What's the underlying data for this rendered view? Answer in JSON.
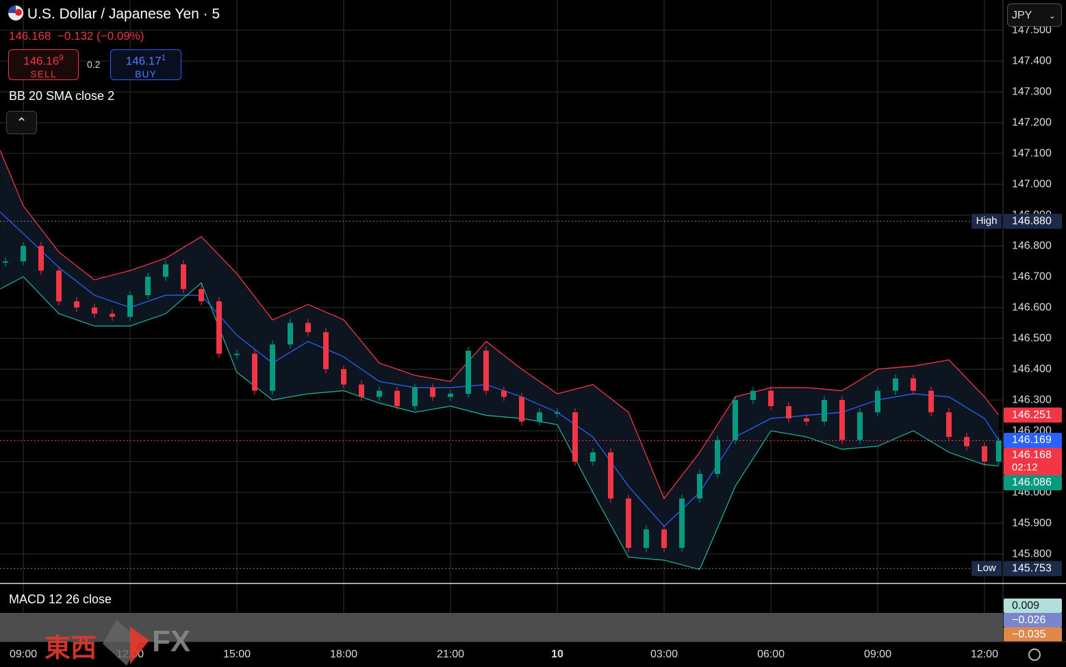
{
  "chart_data": {
    "type": "candlestick",
    "title": "U.S. Dollar / Japanese Yen · 5",
    "indicator": "BB 20 SMA close 2",
    "price": {
      "up_color": "#089981",
      "down_color": "#f23645",
      "x": [
        -0.5,
        0,
        0.5,
        1,
        1.5,
        2,
        2.5,
        3,
        3.5,
        4,
        4.5,
        5,
        5.5,
        6,
        6.5,
        7,
        7.5,
        8,
        8.5,
        9,
        9.5,
        10,
        10.5,
        11,
        11.5,
        12,
        12.5,
        13,
        13.5,
        14,
        14.5,
        15,
        15.5,
        16,
        16.5,
        17,
        17.5,
        18,
        18.5,
        19,
        19.5,
        20,
        20.5,
        21,
        21.5,
        22,
        22.5,
        23,
        23.5,
        24,
        24.5,
        25,
        25.5,
        26,
        26.5,
        27,
        27.4
      ],
      "values": [
        146.75,
        146.8,
        146.72,
        146.62,
        146.6,
        146.58,
        146.57,
        146.64,
        146.7,
        146.74,
        146.66,
        146.62,
        146.45,
        146.45,
        146.33,
        146.48,
        146.55,
        146.52,
        146.4,
        146.35,
        146.31,
        146.33,
        146.28,
        146.34,
        146.31,
        146.32,
        146.46,
        146.33,
        146.31,
        146.23,
        146.26,
        146.26,
        146.1,
        146.13,
        145.98,
        145.82,
        145.88,
        145.82,
        145.98,
        146.06,
        146.17,
        146.3,
        146.33,
        146.28,
        146.24,
        146.23,
        146.3,
        146.17,
        146.26,
        146.33,
        146.37,
        146.33,
        146.26,
        146.18,
        146.15,
        146.1,
        146.168
      ]
    },
    "series": [
      {
        "color": "#f23645",
        "x": [
          -0.65,
          0,
          1,
          2,
          3,
          4,
          5,
          6,
          7,
          8,
          9,
          10,
          11,
          12,
          13,
          14,
          15,
          16,
          17,
          18,
          19,
          20,
          21,
          22,
          23,
          24,
          25,
          26,
          27,
          27.4
        ],
        "values": [
          147.11,
          146.93,
          146.78,
          146.69,
          146.72,
          146.76,
          146.83,
          146.71,
          146.56,
          146.61,
          146.56,
          146.42,
          146.38,
          146.36,
          146.49,
          146.4,
          146.32,
          146.35,
          146.26,
          145.98,
          146.13,
          146.31,
          146.34,
          146.34,
          146.33,
          146.4,
          146.41,
          146.43,
          146.31,
          146.251
        ]
      },
      {
        "color": "#2962ff",
        "x": [
          -0.65,
          0,
          1,
          2,
          3,
          4,
          5,
          6,
          7,
          8,
          9,
          10,
          11,
          12,
          13,
          14,
          15,
          16,
          17,
          18,
          19,
          20,
          21,
          22,
          23,
          24,
          25,
          26,
          27,
          27.4
        ],
        "values": [
          146.91,
          146.84,
          146.73,
          146.64,
          146.6,
          146.64,
          146.64,
          146.51,
          146.42,
          146.49,
          146.44,
          146.36,
          146.34,
          146.34,
          146.35,
          146.31,
          146.26,
          146.18,
          146.02,
          145.89,
          146.0,
          146.18,
          146.24,
          146.25,
          146.26,
          146.3,
          146.32,
          146.31,
          146.24,
          146.169
        ]
      },
      {
        "color": "#22ab94",
        "x": [
          -0.65,
          0,
          1,
          2,
          3,
          4,
          5,
          6,
          7,
          8,
          9,
          10,
          11,
          12,
          13,
          14,
          15,
          16,
          17,
          18,
          19,
          20,
          21,
          22,
          23,
          24,
          25,
          26,
          27,
          27.4
        ],
        "values": [
          146.66,
          146.7,
          146.58,
          146.54,
          146.54,
          146.58,
          146.68,
          146.39,
          146.3,
          146.32,
          146.33,
          146.29,
          146.26,
          146.28,
          146.25,
          146.24,
          146.22,
          146.0,
          145.79,
          145.78,
          145.75,
          146.02,
          146.2,
          146.18,
          146.14,
          146.15,
          146.2,
          146.13,
          146.09,
          146.086
        ]
      }
    ],
    "band_fill": "#0c1520",
    "xlim": [
      -0.654,
      27.52
    ],
    "xticks": [
      {
        "value": 0,
        "label": "09:00"
      },
      {
        "value": 3,
        "label": "12:00"
      },
      {
        "value": 6,
        "label": "15:00"
      },
      {
        "value": 9,
        "label": "18:00"
      },
      {
        "value": 12,
        "label": "21:00"
      },
      {
        "value": 15,
        "label": "10"
      },
      {
        "value": 18,
        "label": "03:00"
      },
      {
        "value": 21,
        "label": "06:00"
      },
      {
        "value": 24,
        "label": "09:00"
      },
      {
        "value": 27,
        "label": "12:00"
      }
    ],
    "ylim": [
      145.709,
      147.598
    ],
    "yticks": [
      {
        "value": 145.8,
        "label": "145.800"
      },
      {
        "value": 145.9,
        "label": "145.900"
      },
      {
        "value": 146.0,
        "label": "146.000"
      },
      {
        "value": 146.1,
        "label": "146.100"
      },
      {
        "value": 146.2,
        "label": "146.200"
      },
      {
        "value": 146.3,
        "label": "146.300"
      },
      {
        "value": 146.4,
        "label": "146.400"
      },
      {
        "value": 146.5,
        "label": "146.500"
      },
      {
        "value": 146.6,
        "label": "146.600"
      },
      {
        "value": 146.7,
        "label": "146.700"
      },
      {
        "value": 146.8,
        "label": "146.800"
      },
      {
        "value": 146.9,
        "label": "146.900"
      },
      {
        "value": 147.0,
        "label": "147.000"
      },
      {
        "value": 147.1,
        "label": "147.100"
      },
      {
        "value": 147.2,
        "label": "147.200"
      },
      {
        "value": 147.3,
        "label": "147.300"
      },
      {
        "value": 147.4,
        "label": "147.400"
      },
      {
        "value": 147.5,
        "label": "147.500"
      }
    ],
    "grid": true,
    "price_lines": [
      {
        "name": "High",
        "value": 146.88,
        "label": "146.880"
      },
      {
        "name": "Low",
        "value": 145.753,
        "label": "145.753"
      }
    ],
    "price_tags": [
      {
        "value": 146.251,
        "color": "#f23645"
      },
      {
        "value": 146.169,
        "color": "#2962ff"
      },
      {
        "value": 146.168,
        "color": "#f23645",
        "countdown": "02:12"
      },
      {
        "value": 146.086,
        "color": "#089981"
      }
    ]
  },
  "ui": {
    "last": "146.168",
    "change": "−0.132",
    "change_pct": "(−0.09%)",
    "sell_price": "146.16",
    "sell_pip": "9",
    "sell": "SELL",
    "spread": "0.2",
    "buy_price": "146.17",
    "buy_pip": "1",
    "buy": "BUY",
    "currency": "JPY",
    "macd": "MACD 12 26 close",
    "macd_values": [
      "0.009",
      "−0.026",
      "−0.035"
    ],
    "watermark": [
      "東西",
      "FX"
    ]
  }
}
